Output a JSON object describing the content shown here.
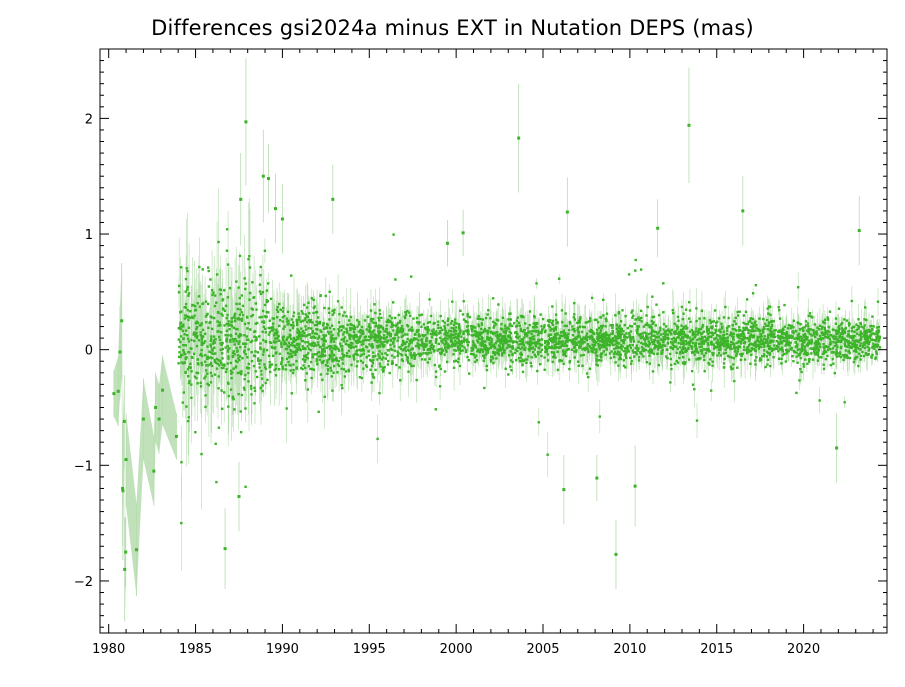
{
  "chart_data": {
    "type": "scatter",
    "title": "Differences gsi2024a minus EXT in Nutation DEPS (mas)",
    "xlabel": "",
    "ylabel": "",
    "xlim": [
      1979.5,
      2024.8
    ],
    "ylim": [
      -2.45,
      2.6
    ],
    "x_ticks": [
      1980,
      1985,
      1990,
      1995,
      2000,
      2005,
      2010,
      2015,
      2020
    ],
    "y_ticks": [
      -2,
      -1,
      0,
      1,
      2
    ],
    "x_tick_labels": [
      "1980",
      "1985",
      "1990",
      "1995",
      "2000",
      "2005",
      "2010",
      "2015",
      "2020"
    ],
    "y_tick_labels": [
      "−2",
      "−1",
      "0",
      "1",
      "2"
    ],
    "grid": false,
    "colors": {
      "points": "#3db32a",
      "errorbars": "#b5dcae"
    },
    "early_points": [
      {
        "x": 1980.3,
        "y": -0.38,
        "err": 0.2
      },
      {
        "x": 1980.55,
        "y": -0.36,
        "err": 0.3
      },
      {
        "x": 1980.65,
        "y": -0.02,
        "err": 0.4
      },
      {
        "x": 1980.75,
        "y": 0.25,
        "err": 0.5
      },
      {
        "x": 1980.8,
        "y": -1.2,
        "err": 0.5
      },
      {
        "x": 1980.82,
        "y": -1.22,
        "err": 0.6
      },
      {
        "x": 1980.9,
        "y": -0.62,
        "err": 0.4
      },
      {
        "x": 1980.92,
        "y": -1.9,
        "err": 0.45
      },
      {
        "x": 1980.98,
        "y": -1.75,
        "err": 0.3
      },
      {
        "x": 1981.0,
        "y": -0.95,
        "err": 0.4
      },
      {
        "x": 1981.6,
        "y": -1.73,
        "err": 0.4
      },
      {
        "x": 1982.0,
        "y": -0.6,
        "err": 0.35
      },
      {
        "x": 1982.6,
        "y": -1.05,
        "err": 0.3
      },
      {
        "x": 1982.7,
        "y": -0.5,
        "err": 0.3
      },
      {
        "x": 1982.9,
        "y": -0.6,
        "err": 0.3
      },
      {
        "x": 1983.1,
        "y": -0.35,
        "err": 0.3
      },
      {
        "x": 1983.9,
        "y": -0.75,
        "err": 0.2
      }
    ],
    "outliers": [
      {
        "x": 1986.7,
        "y": -1.72,
        "err": 0.35
      },
      {
        "x": 1987.5,
        "y": -1.27,
        "err": 0.3
      },
      {
        "x": 1987.6,
        "y": 1.3,
        "err": 0.4
      },
      {
        "x": 1987.9,
        "y": 1.97,
        "err": 0.55
      },
      {
        "x": 1988.9,
        "y": 1.5,
        "err": 0.4
      },
      {
        "x": 1989.2,
        "y": 1.48,
        "err": 0.3
      },
      {
        "x": 1989.6,
        "y": 1.22,
        "err": 0.3
      },
      {
        "x": 1990.0,
        "y": 1.13,
        "err": 0.3
      },
      {
        "x": 1992.9,
        "y": 1.3,
        "err": 0.3
      },
      {
        "x": 1999.5,
        "y": 0.92,
        "err": 0.2
      },
      {
        "x": 2000.4,
        "y": 1.01,
        "err": 0.2
      },
      {
        "x": 2003.6,
        "y": 1.83,
        "err": 0.47
      },
      {
        "x": 2006.2,
        "y": -1.21,
        "err": 0.3
      },
      {
        "x": 2006.4,
        "y": 1.19,
        "err": 0.3
      },
      {
        "x": 2008.1,
        "y": -1.11,
        "err": 0.2
      },
      {
        "x": 2009.2,
        "y": -1.77,
        "err": 0.3
      },
      {
        "x": 2010.3,
        "y": -1.18,
        "err": 0.35
      },
      {
        "x": 2011.6,
        "y": 1.05,
        "err": 0.25
      },
      {
        "x": 2013.4,
        "y": 1.94,
        "err": 0.5
      },
      {
        "x": 2016.5,
        "y": 1.2,
        "err": 0.3
      },
      {
        "x": 2021.9,
        "y": -0.85,
        "err": 0.3
      },
      {
        "x": 2023.2,
        "y": 1.03,
        "err": 0.3
      }
    ],
    "bulk_series": {
      "x_range": [
        1984.0,
        2024.4
      ],
      "n_points": 4200,
      "mean": 0.08,
      "scatter_sd_by_epoch": [
        {
          "x": 1984,
          "sd": 0.26
        },
        {
          "x": 1988,
          "sd": 0.28
        },
        {
          "x": 1990,
          "sd": 0.17
        },
        {
          "x": 1995,
          "sd": 0.12
        },
        {
          "x": 2000,
          "sd": 0.1
        },
        {
          "x": 2010,
          "sd": 0.1
        },
        {
          "x": 2024.4,
          "sd": 0.08
        }
      ]
    }
  }
}
